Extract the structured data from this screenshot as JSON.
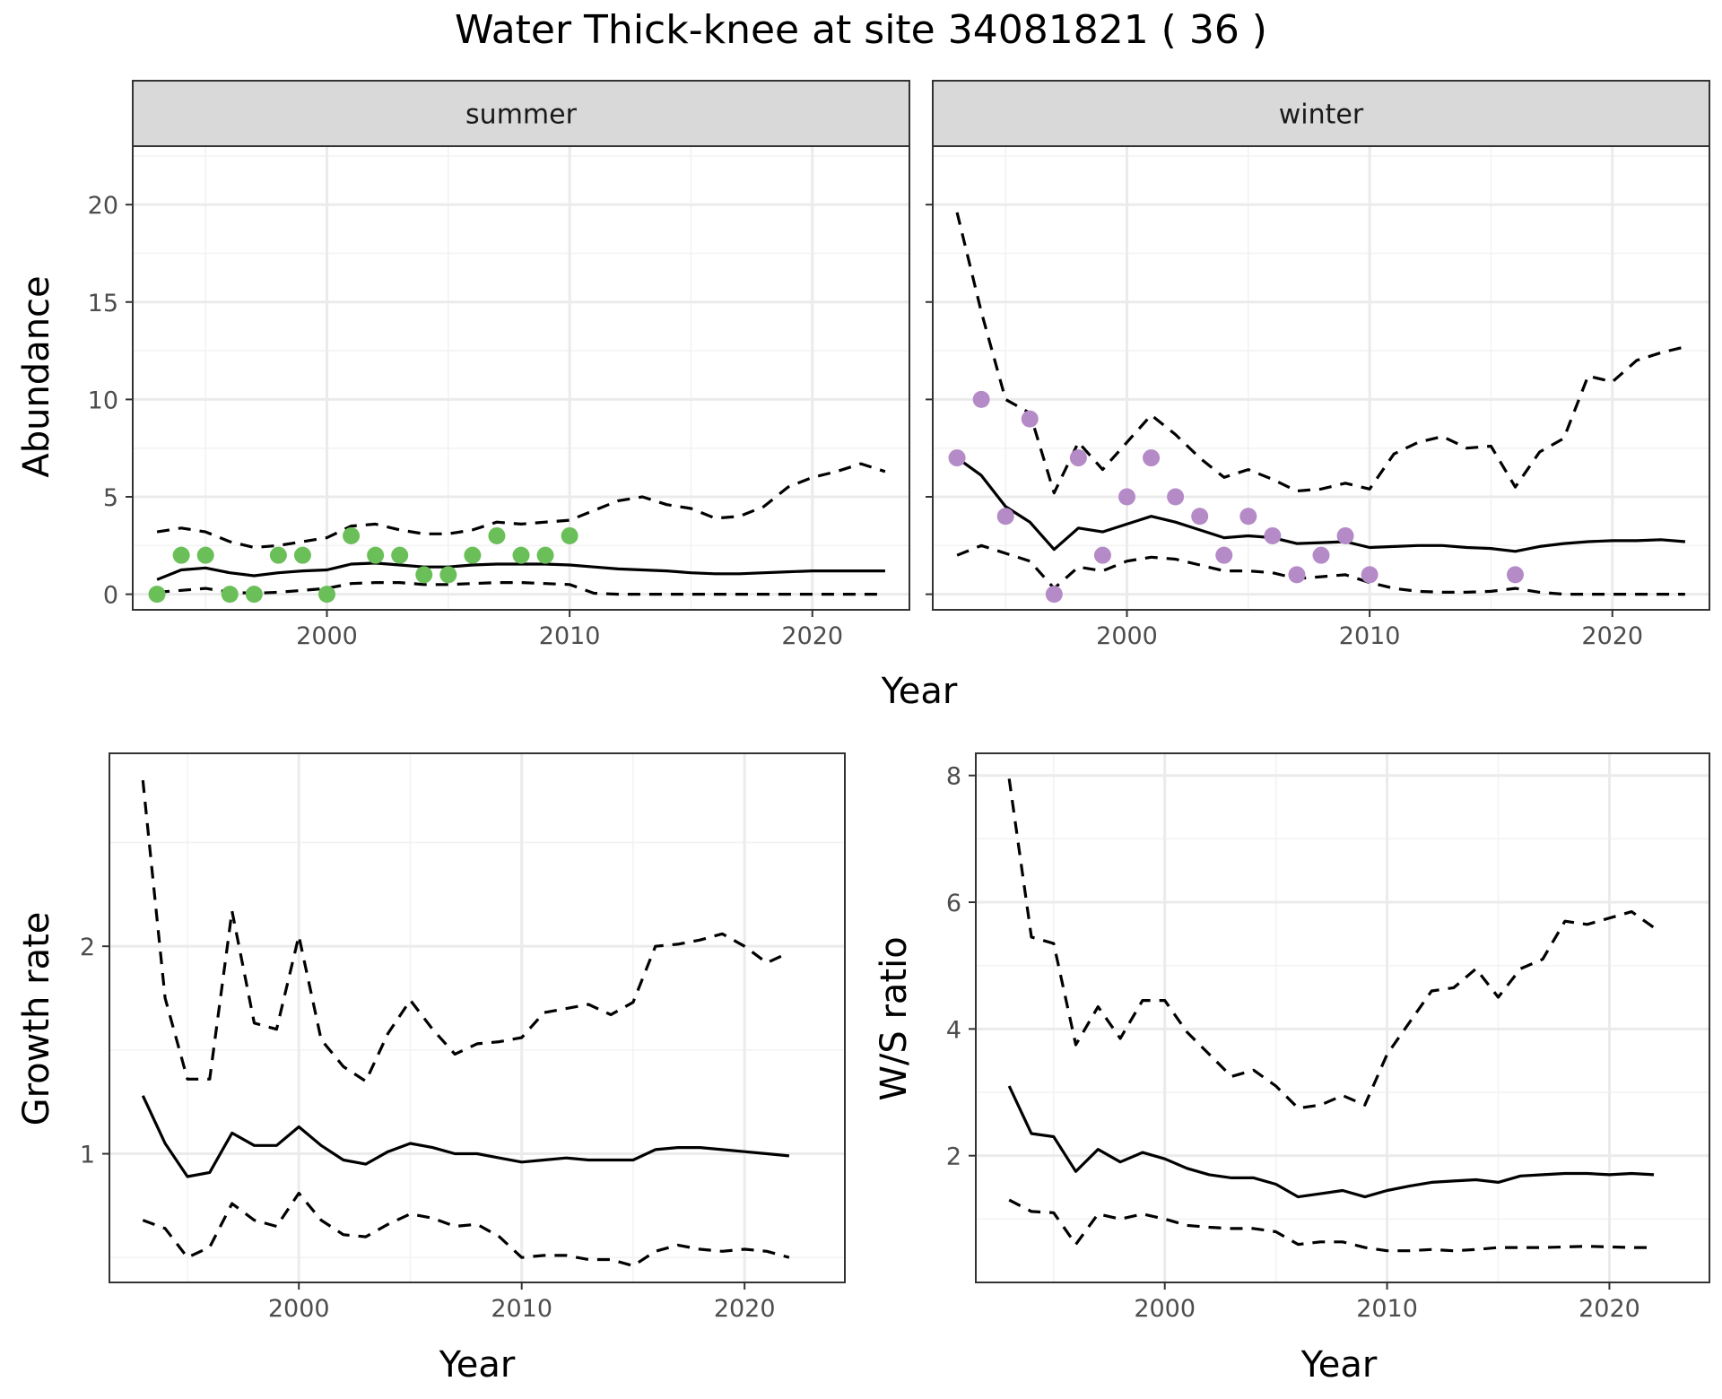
{
  "title": "Water Thick-knee at site 34081821 ( 36 )",
  "colors": {
    "summer_points": "#6bbf59",
    "winter_points": "#b48ac7",
    "line": "#000000",
    "strip_fill": "#d9d9d9",
    "grid_major": "#ebebeb",
    "grid_minor": "#f2f2f2"
  },
  "chart_data": [
    {
      "id": "summer",
      "type": "line",
      "strip": "summer",
      "xlabel": "",
      "ylabel": "Abundance",
      "xlim": [
        1992,
        2024
      ],
      "ylim": [
        -0.8,
        23
      ],
      "xticks": [
        2000,
        2010,
        2020
      ],
      "yticks": [
        0,
        5,
        10,
        15,
        20
      ],
      "grid": true,
      "points": {
        "x": [
          1993,
          1994,
          1995,
          1996,
          1997,
          1998,
          1999,
          2000,
          2001,
          2002,
          2003,
          2004,
          2005,
          2006,
          2007,
          2008,
          2009,
          2010
        ],
        "y": [
          0,
          2,
          2,
          0,
          0,
          2,
          2,
          0,
          3,
          2,
          2,
          1,
          1,
          2,
          3,
          2,
          2,
          3
        ]
      },
      "series": [
        {
          "style": "solid",
          "x": [
            1993,
            1994,
            1995,
            1996,
            1997,
            1998,
            1999,
            2000,
            2001,
            2002,
            2003,
            2004,
            2005,
            2006,
            2007,
            2008,
            2009,
            2010,
            2011,
            2012,
            2013,
            2014,
            2015,
            2016,
            2017,
            2018,
            2019,
            2020,
            2021,
            2022,
            2023
          ],
          "y": [
            0.75,
            1.25,
            1.35,
            1.1,
            0.95,
            1.1,
            1.2,
            1.25,
            1.55,
            1.6,
            1.5,
            1.4,
            1.4,
            1.5,
            1.55,
            1.55,
            1.55,
            1.5,
            1.4,
            1.3,
            1.25,
            1.2,
            1.1,
            1.05,
            1.05,
            1.1,
            1.15,
            1.2,
            1.2,
            1.2,
            1.2
          ]
        },
        {
          "style": "dashed",
          "x": [
            1993,
            1994,
            1995,
            1996,
            1997,
            1998,
            1999,
            2000,
            2001,
            2002,
            2003,
            2004,
            2005,
            2006,
            2007,
            2008,
            2009,
            2010,
            2011,
            2012,
            2013,
            2014,
            2015,
            2016,
            2017,
            2018,
            2019,
            2020,
            2021,
            2022,
            2023
          ],
          "y": [
            3.2,
            3.4,
            3.2,
            2.7,
            2.4,
            2.5,
            2.7,
            2.9,
            3.5,
            3.6,
            3.3,
            3.1,
            3.1,
            3.3,
            3.7,
            3.6,
            3.7,
            3.8,
            4.3,
            4.8,
            5.0,
            4.6,
            4.4,
            3.9,
            4.0,
            4.5,
            5.5,
            6.0,
            6.3,
            6.7,
            6.3
          ]
        },
        {
          "style": "dashed",
          "x": [
            1993,
            1994,
            1995,
            1996,
            1997,
            1998,
            1999,
            2000,
            2001,
            2002,
            2003,
            2004,
            2005,
            2006,
            2007,
            2008,
            2009,
            2010,
            2011,
            2012,
            2013,
            2014,
            2015,
            2016,
            2017,
            2018,
            2019,
            2020,
            2021,
            2022,
            2023
          ],
          "y": [
            0.1,
            0.2,
            0.3,
            0.1,
            0.05,
            0.1,
            0.2,
            0.3,
            0.55,
            0.6,
            0.6,
            0.5,
            0.5,
            0.55,
            0.6,
            0.6,
            0.55,
            0.5,
            0.05,
            0.0,
            0.0,
            0.0,
            0.0,
            0.0,
            0.0,
            0.0,
            0.0,
            0.0,
            0.0,
            0.0,
            0.0
          ]
        }
      ]
    },
    {
      "id": "winter",
      "type": "line",
      "strip": "winter",
      "xlabel": "",
      "ylabel": "",
      "xlim": [
        1992,
        2024
      ],
      "ylim": [
        -0.8,
        23
      ],
      "xticks": [
        2000,
        2010,
        2020
      ],
      "yticks": [
        0,
        5,
        10,
        15,
        20
      ],
      "grid": true,
      "points": {
        "x": [
          1993,
          1994,
          1995,
          1996,
          1997,
          1998,
          1999,
          2000,
          2001,
          2002,
          2003,
          2004,
          2005,
          2006,
          2007,
          2008,
          2009,
          2010,
          2016
        ],
        "y": [
          7,
          10,
          4,
          9,
          0,
          7,
          2,
          5,
          7,
          5,
          4,
          2,
          4,
          3,
          1,
          2,
          3,
          1,
          1
        ]
      },
      "series": [
        {
          "style": "solid",
          "x": [
            1993,
            1994,
            1995,
            1996,
            1997,
            1998,
            1999,
            2000,
            2001,
            2002,
            2003,
            2004,
            2005,
            2006,
            2007,
            2008,
            2009,
            2010,
            2011,
            2012,
            2013,
            2014,
            2015,
            2016,
            2017,
            2018,
            2019,
            2020,
            2021,
            2022,
            2023
          ],
          "y": [
            7.0,
            6.1,
            4.5,
            3.7,
            2.3,
            3.4,
            3.2,
            3.6,
            4.0,
            3.7,
            3.3,
            2.9,
            3.0,
            2.9,
            2.6,
            2.65,
            2.7,
            2.4,
            2.45,
            2.5,
            2.5,
            2.4,
            2.35,
            2.2,
            2.45,
            2.6,
            2.7,
            2.75,
            2.75,
            2.8,
            2.7
          ]
        },
        {
          "style": "dashed",
          "x": [
            1993,
            1994,
            1995,
            1996,
            1997,
            1998,
            1999,
            2000,
            2001,
            2002,
            2003,
            2004,
            2005,
            2006,
            2007,
            2008,
            2009,
            2010,
            2011,
            2012,
            2013,
            2014,
            2015,
            2016,
            2017,
            2018,
            2019,
            2020,
            2021,
            2022,
            2023
          ],
          "y": [
            19.6,
            14.5,
            10.0,
            9.3,
            5.2,
            7.8,
            6.4,
            7.8,
            9.2,
            8.2,
            7.0,
            6.0,
            6.4,
            5.9,
            5.3,
            5.4,
            5.7,
            5.4,
            7.2,
            7.8,
            8.1,
            7.5,
            7.6,
            5.5,
            7.3,
            8.0,
            11.2,
            10.9,
            12.0,
            12.4,
            12.7
          ]
        },
        {
          "style": "dashed",
          "x": [
            1993,
            1994,
            1995,
            1996,
            1997,
            1998,
            1999,
            2000,
            2001,
            2002,
            2003,
            2004,
            2005,
            2006,
            2007,
            2008,
            2009,
            2010,
            2011,
            2012,
            2013,
            2014,
            2015,
            2016,
            2017,
            2018,
            2019,
            2020,
            2021,
            2022,
            2023
          ],
          "y": [
            2.0,
            2.5,
            2.1,
            1.7,
            0.3,
            1.4,
            1.2,
            1.7,
            1.9,
            1.8,
            1.5,
            1.2,
            1.2,
            1.1,
            0.8,
            0.9,
            1.0,
            0.6,
            0.3,
            0.15,
            0.1,
            0.1,
            0.15,
            0.3,
            0.1,
            0.0,
            0.0,
            0.0,
            0.0,
            0.0,
            0.0
          ]
        }
      ]
    },
    {
      "id": "growth",
      "type": "line",
      "xlabel": "Year",
      "ylabel": "Growth rate",
      "xlim": [
        1991.5,
        2024.5
      ],
      "ylim": [
        0.38,
        2.93
      ],
      "xticks": [
        2000,
        2010,
        2020
      ],
      "yticks": [
        1,
        2
      ],
      "grid": true,
      "series": [
        {
          "style": "solid",
          "x": [
            1993,
            1994,
            1995,
            1996,
            1997,
            1998,
            1999,
            2000,
            2001,
            2002,
            2003,
            2004,
            2005,
            2006,
            2007,
            2008,
            2009,
            2010,
            2011,
            2012,
            2013,
            2014,
            2015,
            2016,
            2017,
            2018,
            2019,
            2020,
            2021,
            2022
          ],
          "y": [
            1.28,
            1.05,
            0.89,
            0.91,
            1.1,
            1.04,
            1.04,
            1.13,
            1.04,
            0.97,
            0.95,
            1.01,
            1.05,
            1.03,
            1.0,
            1.0,
            0.98,
            0.96,
            0.97,
            0.98,
            0.97,
            0.97,
            0.97,
            1.02,
            1.03,
            1.03,
            1.02,
            1.01,
            1.0,
            0.99
          ]
        },
        {
          "style": "dashed",
          "x": [
            1993,
            1994,
            1995,
            1996,
            1997,
            1998,
            1999,
            2000,
            2001,
            2002,
            2003,
            2004,
            2005,
            2006,
            2007,
            2008,
            2009,
            2010,
            2011,
            2012,
            2013,
            2014,
            2015,
            2016,
            2017,
            2018,
            2019,
            2020,
            2021,
            2022
          ],
          "y": [
            2.8,
            1.75,
            1.36,
            1.36,
            2.17,
            1.63,
            1.6,
            2.05,
            1.55,
            1.42,
            1.35,
            1.58,
            1.74,
            1.6,
            1.48,
            1.53,
            1.54,
            1.56,
            1.68,
            1.7,
            1.72,
            1.67,
            1.73,
            2.0,
            2.01,
            2.03,
            2.06,
            2.0,
            1.92,
            1.97
          ]
        },
        {
          "style": "dashed",
          "x": [
            1993,
            1994,
            1995,
            1996,
            1997,
            1998,
            1999,
            2000,
            2001,
            2002,
            2003,
            2004,
            2005,
            2006,
            2007,
            2008,
            2009,
            2010,
            2011,
            2012,
            2013,
            2014,
            2015,
            2016,
            2017,
            2018,
            2019,
            2020,
            2021,
            2022
          ],
          "y": [
            0.68,
            0.64,
            0.5,
            0.55,
            0.76,
            0.68,
            0.65,
            0.81,
            0.68,
            0.61,
            0.6,
            0.66,
            0.71,
            0.69,
            0.65,
            0.66,
            0.6,
            0.5,
            0.51,
            0.51,
            0.49,
            0.49,
            0.46,
            0.53,
            0.56,
            0.54,
            0.53,
            0.54,
            0.53,
            0.5
          ]
        }
      ]
    },
    {
      "id": "ws",
      "type": "line",
      "xlabel": "Year",
      "ylabel": "W/S ratio",
      "xlim": [
        1991.5,
        2024.5
      ],
      "ylim": [
        0.0,
        8.35
      ],
      "xticks": [
        2000,
        2010,
        2020
      ],
      "yticks": [
        2,
        4,
        6,
        8
      ],
      "grid": true,
      "series": [
        {
          "style": "solid",
          "x": [
            1993,
            1994,
            1995,
            1996,
            1997,
            1998,
            1999,
            2000,
            2001,
            2002,
            2003,
            2004,
            2005,
            2006,
            2007,
            2008,
            2009,
            2010,
            2011,
            2012,
            2013,
            2014,
            2015,
            2016,
            2017,
            2018,
            2019,
            2020,
            2021,
            2022
          ],
          "y": [
            3.1,
            2.35,
            2.3,
            1.75,
            2.1,
            1.9,
            2.05,
            1.95,
            1.8,
            1.7,
            1.65,
            1.65,
            1.55,
            1.35,
            1.4,
            1.45,
            1.35,
            1.45,
            1.52,
            1.58,
            1.6,
            1.62,
            1.58,
            1.68,
            1.7,
            1.72,
            1.72,
            1.7,
            1.72,
            1.7
          ]
        },
        {
          "style": "dashed",
          "x": [
            1993,
            1994,
            1995,
            1996,
            1997,
            1998,
            1999,
            2000,
            2001,
            2002,
            2003,
            2004,
            2005,
            2006,
            2007,
            2008,
            2009,
            2010,
            2011,
            2012,
            2013,
            2014,
            2015,
            2016,
            2017,
            2018,
            2019,
            2020,
            2021,
            2022
          ],
          "y": [
            7.95,
            5.45,
            5.35,
            3.75,
            4.35,
            3.85,
            4.45,
            4.45,
            3.95,
            3.6,
            3.25,
            3.35,
            3.1,
            2.75,
            2.8,
            2.95,
            2.8,
            3.6,
            4.1,
            4.6,
            4.65,
            4.95,
            4.5,
            4.95,
            5.1,
            5.7,
            5.65,
            5.75,
            5.85,
            5.6
          ]
        },
        {
          "style": "dashed",
          "x": [
            1993,
            1994,
            1995,
            1996,
            1997,
            1998,
            1999,
            2000,
            2001,
            2002,
            2003,
            2004,
            2005,
            2006,
            2007,
            2008,
            2009,
            2010,
            2011,
            2012,
            2013,
            2014,
            2015,
            2016,
            2017,
            2018,
            2019,
            2020,
            2021,
            2022
          ],
          "y": [
            1.3,
            1.12,
            1.1,
            0.6,
            1.08,
            1.0,
            1.08,
            1.0,
            0.9,
            0.87,
            0.85,
            0.85,
            0.8,
            0.6,
            0.64,
            0.64,
            0.55,
            0.5,
            0.5,
            0.52,
            0.5,
            0.52,
            0.55,
            0.55,
            0.55,
            0.56,
            0.57,
            0.56,
            0.55,
            0.55
          ]
        }
      ]
    }
  ]
}
